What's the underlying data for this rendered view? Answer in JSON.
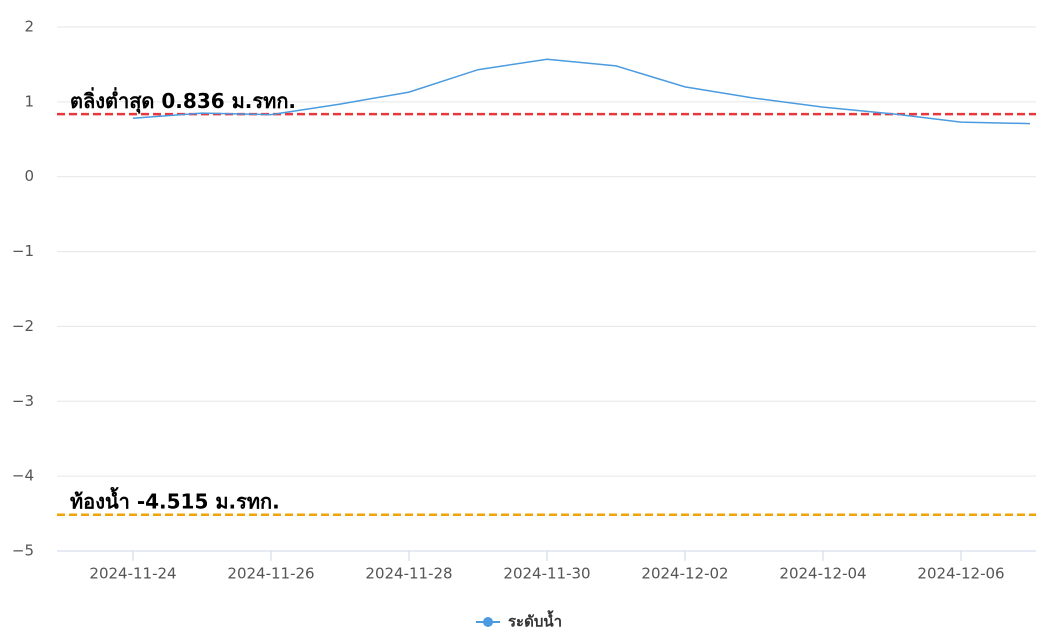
{
  "chart_data": {
    "type": "line",
    "x": [
      "2024-11-24",
      "2024-11-25",
      "2024-11-26",
      "2024-11-27",
      "2024-11-28",
      "2024-11-29",
      "2024-11-30",
      "2024-12-01",
      "2024-12-02",
      "2024-12-03",
      "2024-12-04",
      "2024-12-05",
      "2024-12-06",
      "2024-12-07"
    ],
    "series": [
      {
        "name": "ระดับน้ำ",
        "color": "#4a9be0",
        "values": [
          0.78,
          0.85,
          0.83,
          0.97,
          1.13,
          1.43,
          1.57,
          1.48,
          1.2,
          1.05,
          0.93,
          0.84,
          0.73,
          0.71
        ]
      }
    ],
    "xlim": [
      "2024-11-23",
      "2024-12-07"
    ],
    "xticks": [
      "2024-11-24",
      "2024-11-26",
      "2024-11-28",
      "2024-11-30",
      "2024-12-02",
      "2024-12-04",
      "2024-12-06"
    ],
    "ylim": [
      -5,
      2
    ],
    "yticks": [
      {
        "value": -5,
        "label": "−5"
      },
      {
        "value": -4,
        "label": "−4"
      },
      {
        "value": -3,
        "label": "−3"
      },
      {
        "value": -2,
        "label": "−2"
      },
      {
        "value": -1,
        "label": "−1"
      },
      0,
      1,
      2
    ],
    "grid": true,
    "annotations": [
      {
        "label": "ตลิ่งต่ำสุด 0.836 ม.รทก.",
        "value": 0.836,
        "color": "#e8383d"
      },
      {
        "label": "ท้องน้ำ -4.515 ม.รทก.",
        "value": -4.515,
        "color": "#f0a30a"
      }
    ]
  }
}
